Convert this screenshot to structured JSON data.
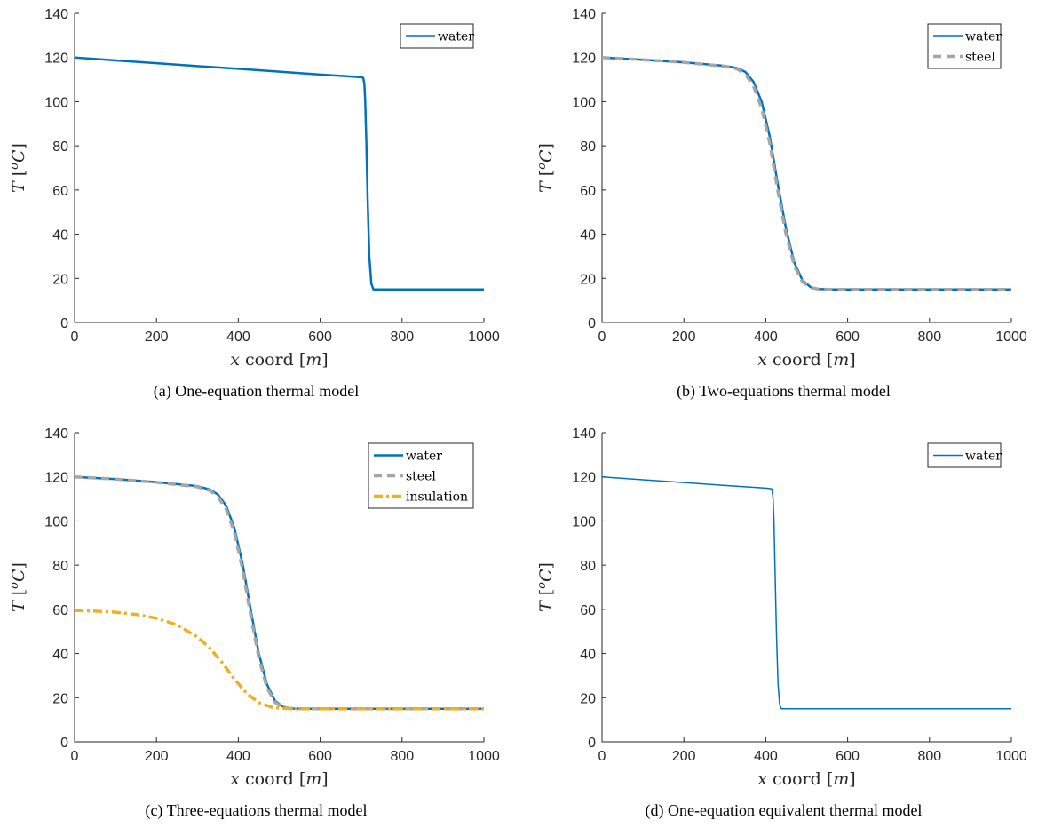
{
  "chart_data": [
    {
      "type": "line",
      "caption": "(a) One-equation thermal model",
      "xlabel": "x coord [m]",
      "ylabel": "T [oC]",
      "xlim": [
        0,
        1000
      ],
      "ylim": [
        0,
        140
      ],
      "xticks": [
        0,
        200,
        400,
        600,
        800,
        1000
      ],
      "yticks": [
        0,
        20,
        40,
        60,
        80,
        100,
        120,
        140
      ],
      "grid": false,
      "legend_position": "top-right",
      "series": [
        {
          "name": "water",
          "color": "#0072BD",
          "style": "solid",
          "width": 2.5,
          "x": [
            0,
            100,
            200,
            300,
            400,
            500,
            600,
            700,
            705,
            708,
            710,
            713,
            716,
            720,
            725,
            730,
            1000
          ],
          "y": [
            120,
            118.7,
            117.4,
            116.1,
            114.9,
            113.6,
            112.3,
            111.1,
            110.8,
            108,
            100,
            80,
            55,
            30,
            17.5,
            15,
            15
          ]
        }
      ]
    },
    {
      "type": "line",
      "caption": "(b) Two-equations thermal model",
      "xlabel": "x coord [m]",
      "ylabel": "T [oC]",
      "xlim": [
        0,
        1000
      ],
      "ylim": [
        0,
        140
      ],
      "xticks": [
        0,
        200,
        400,
        600,
        800,
        1000
      ],
      "yticks": [
        0,
        20,
        40,
        60,
        80,
        100,
        120,
        140
      ],
      "grid": false,
      "legend_position": "top-right",
      "series": [
        {
          "name": "water",
          "color": "#0072BD",
          "style": "solid",
          "width": 2.5,
          "x": [
            0,
            100,
            200,
            300,
            330,
            350,
            370,
            390,
            410,
            430,
            450,
            470,
            490,
            510,
            530,
            560,
            1000
          ],
          "y": [
            120,
            119,
            117.8,
            116.2,
            115.2,
            113.5,
            109,
            100,
            84,
            62,
            42,
            27,
            19,
            16,
            15.2,
            15,
            15
          ]
        },
        {
          "name": "steel",
          "color": "#A6A6A6",
          "style": "dashed",
          "width": 3.5,
          "x": [
            0,
            100,
            200,
            300,
            330,
            350,
            370,
            390,
            410,
            430,
            450,
            470,
            490,
            510,
            530,
            560,
            1000
          ],
          "y": [
            120,
            119,
            117.8,
            116,
            114.8,
            112.5,
            107,
            97,
            81,
            59,
            39.5,
            25.5,
            18.3,
            15.8,
            15.1,
            15,
            15
          ]
        }
      ]
    },
    {
      "type": "line",
      "caption": "(c) Three-equations thermal model",
      "xlabel": "x coord [m]",
      "ylabel": "T [oC]",
      "xlim": [
        0,
        1000
      ],
      "ylim": [
        0,
        140
      ],
      "xticks": [
        0,
        200,
        400,
        600,
        800,
        1000
      ],
      "yticks": [
        0,
        20,
        40,
        60,
        80,
        100,
        120,
        140
      ],
      "grid": false,
      "legend_position": "top-right",
      "series": [
        {
          "name": "water",
          "color": "#0072BD",
          "style": "solid",
          "width": 2.5,
          "x": [
            0,
            100,
            200,
            300,
            330,
            350,
            370,
            390,
            410,
            430,
            450,
            470,
            490,
            510,
            530,
            560,
            1000
          ],
          "y": [
            120,
            119,
            117.6,
            115.8,
            114.3,
            112,
            107,
            97,
            81,
            60,
            40,
            26,
            18.5,
            15.8,
            15.1,
            15,
            15
          ]
        },
        {
          "name": "steel",
          "color": "#A6A6A6",
          "style": "dashed",
          "width": 3.5,
          "x": [
            0,
            100,
            200,
            300,
            330,
            350,
            370,
            390,
            410,
            430,
            450,
            470,
            490,
            510,
            530,
            560,
            1000
          ],
          "y": [
            120,
            119,
            117.5,
            115.5,
            113.8,
            111,
            105.5,
            95,
            78.5,
            57.5,
            38,
            24.5,
            17.8,
            15.6,
            15.1,
            15,
            15
          ]
        },
        {
          "name": "insulation",
          "color": "#EDB120",
          "style": "dashdot",
          "width": 3.5,
          "x": [
            0,
            50,
            100,
            150,
            200,
            250,
            300,
            330,
            360,
            390,
            420,
            450,
            480,
            500,
            530,
            560,
            1000
          ],
          "y": [
            59.5,
            59.2,
            58.7,
            57.7,
            56,
            53,
            47.5,
            42.5,
            36,
            28.5,
            22,
            17.8,
            15.8,
            15.3,
            15,
            15,
            15
          ]
        }
      ]
    },
    {
      "type": "line",
      "caption": "(d) One-equation equivalent thermal model",
      "xlabel": "x coord [m]",
      "ylabel": "T [oC]",
      "xlim": [
        0,
        1000
      ],
      "ylim": [
        0,
        140
      ],
      "xticks": [
        0,
        200,
        400,
        600,
        800,
        1000
      ],
      "yticks": [
        0,
        20,
        40,
        60,
        80,
        100,
        120,
        140
      ],
      "grid": false,
      "legend_position": "top-right",
      "series": [
        {
          "name": "water",
          "color": "#0072BD",
          "style": "solid",
          "width": 1.5,
          "x": [
            0,
            100,
            200,
            300,
            400,
            410,
            415,
            418,
            420,
            423,
            426,
            430,
            434,
            438,
            1000
          ],
          "y": [
            120,
            118.7,
            117.4,
            116.1,
            114.9,
            114.7,
            114.5,
            110,
            100,
            75,
            50,
            26,
            17,
            15,
            15
          ]
        }
      ]
    }
  ]
}
